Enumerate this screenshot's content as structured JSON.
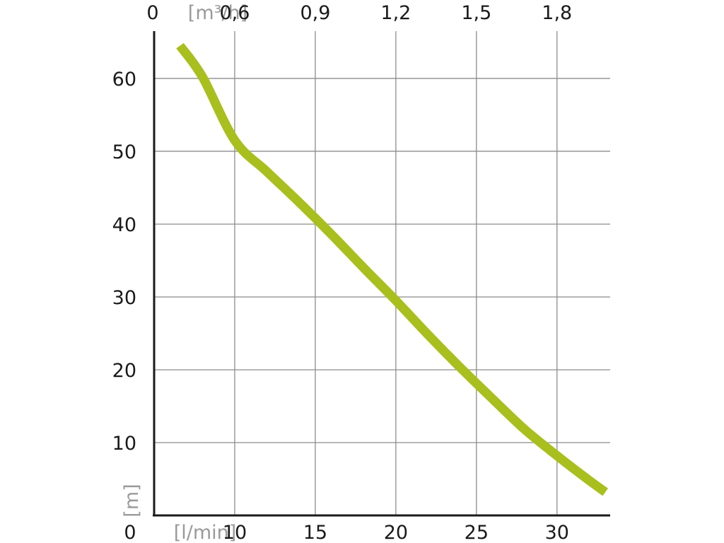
{
  "chart_data": {
    "type": "line",
    "title": "",
    "xlabel": "[l/min]",
    "xlabel_top": "[m³/h]",
    "ylabel": "[m]",
    "xlim": [
      5,
      33.3
    ],
    "ylim": [
      0,
      66.5
    ],
    "x_origin_label": "0",
    "x_top_origin_label": "0",
    "y_origin_label": "0",
    "x_ticks": [
      10,
      15,
      20,
      25,
      30
    ],
    "x_tick_labels": [
      "10",
      "15",
      "20",
      "25",
      "30"
    ],
    "x_top_ticks": [
      10,
      15,
      20,
      25,
      30
    ],
    "x_top_tick_labels": [
      "0,6",
      "0,9",
      "1,2",
      "1,5",
      "1,8"
    ],
    "y_ticks": [
      10,
      20,
      30,
      40,
      50,
      60
    ],
    "y_tick_labels": [
      "10",
      "20",
      "30",
      "40",
      "50",
      "60"
    ],
    "grid": true,
    "series": [
      {
        "color": "#a8bf1e",
        "x": [
          6.6,
          8,
          10,
          12,
          14,
          16,
          18,
          20,
          22,
          24,
          26,
          28,
          30,
          32,
          33
        ],
        "y": [
          64.5,
          60.2,
          51.5,
          47.2,
          43,
          38.6,
          34,
          29.5,
          24.8,
          20.3,
          16,
          11.8,
          8.2,
          4.8,
          3.2
        ]
      }
    ]
  }
}
